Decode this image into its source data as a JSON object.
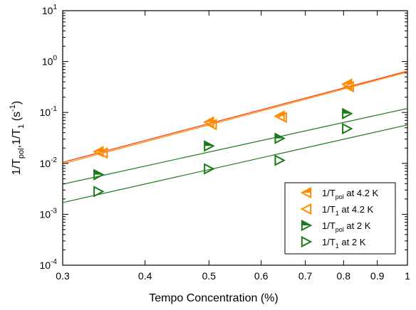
{
  "chart_data": {
    "type": "scatter",
    "xscale": "log",
    "yscale": "log",
    "xlim": [
      0.3,
      1.0
    ],
    "ylim": [
      0.0001,
      10
    ],
    "xlabel": "Tempo Concentration (%)",
    "ylabel": {
      "parts": [
        {
          "text": "1/T",
          "sub": "pol"
        },
        {
          "text": ",1/T",
          "sub": "1"
        },
        {
          "text": " (s",
          "sup": "-1"
        },
        {
          "text": ")"
        }
      ]
    },
    "x_ticks": [
      {
        "value": 0.3,
        "label": "0.3"
      },
      {
        "value": 0.4,
        "label": "0.4"
      },
      {
        "value": 0.5,
        "label": "0.5"
      },
      {
        "value": 0.6,
        "label": "0.6"
      },
      {
        "value": 0.7,
        "label": "0.7"
      },
      {
        "value": 0.8,
        "label": "0.8"
      },
      {
        "value": 0.9,
        "label": "0.9"
      },
      {
        "value": 1.0,
        "label": "1"
      }
    ],
    "y_ticks": [
      {
        "value": 0.0001,
        "base": "10",
        "exp": "-4"
      },
      {
        "value": 0.001,
        "base": "10",
        "exp": "-3"
      },
      {
        "value": 0.01,
        "base": "10",
        "exp": "-2"
      },
      {
        "value": 0.1,
        "base": "10",
        "exp": "-1"
      },
      {
        "value": 1,
        "base": "10",
        "exp": "0"
      },
      {
        "value": 10,
        "base": "10",
        "exp": "1"
      }
    ],
    "grid": false,
    "legend_position": "bottom-right",
    "series": [
      {
        "name_parts": [
          {
            "text": "1/T"
          },
          {
            "sub": "pol"
          },
          {
            "text": " at 4.2 K"
          }
        ],
        "color": "#ff8c00",
        "marker": "triangle-left-half-filled",
        "points": [
          [
            0.34,
            0.017
          ],
          [
            0.5,
            0.065
          ],
          [
            0.64,
            0.085
          ],
          [
            0.81,
            0.36
          ]
        ],
        "fit": {
          "x": [
            0.3,
            1.0
          ],
          "y": [
            0.0105,
            0.65
          ],
          "color": "#ff3300"
        }
      },
      {
        "name_parts": [
          {
            "text": "1/T"
          },
          {
            "sub": "1"
          },
          {
            "text": "    at 4.2 K"
          }
        ],
        "color": "#ff8c00",
        "marker": "triangle-left-open",
        "points": [
          [
            0.345,
            0.016
          ],
          [
            0.505,
            0.058
          ],
          [
            0.645,
            0.08
          ],
          [
            0.815,
            0.32
          ]
        ],
        "fit": {
          "x": [
            0.3,
            1.0
          ],
          "y": [
            0.0098,
            0.62
          ],
          "color": "#ff8c00"
        }
      },
      {
        "name_parts": [
          {
            "text": "1/T"
          },
          {
            "sub": "pol"
          },
          {
            "text": " at 2 K"
          }
        ],
        "color": "#1a7a1a",
        "marker": "triangle-right-half-filled",
        "points": [
          [
            0.34,
            0.006
          ],
          [
            0.5,
            0.022
          ],
          [
            0.64,
            0.031
          ],
          [
            0.81,
            0.095
          ]
        ],
        "fit": {
          "x": [
            0.3,
            1.0
          ],
          "y": [
            0.0039,
            0.12
          ],
          "color": "#1a7a1a"
        }
      },
      {
        "name_parts": [
          {
            "text": "1/T"
          },
          {
            "sub": "1"
          },
          {
            "text": "    at 2 K"
          }
        ],
        "color": "#1a7a1a",
        "marker": "triangle-right-open",
        "points": [
          [
            0.34,
            0.0028
          ],
          [
            0.5,
            0.0078
          ],
          [
            0.64,
            0.0115
          ],
          [
            0.81,
            0.048
          ]
        ],
        "fit": {
          "x": [
            0.3,
            1.0
          ],
          "y": [
            0.0017,
            0.057
          ],
          "color": "#1a7a1a"
        }
      }
    ]
  }
}
